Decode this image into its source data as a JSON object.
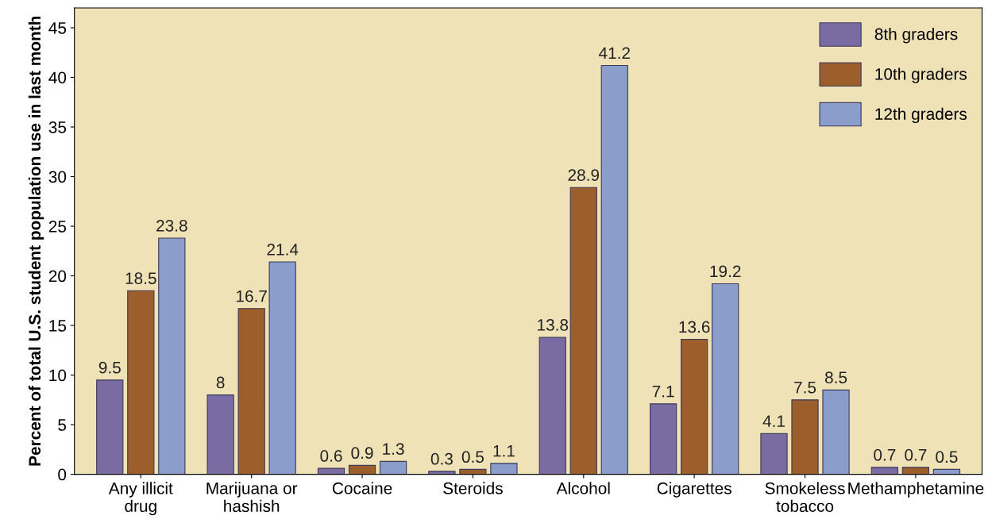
{
  "chart_data": {
    "type": "bar",
    "ylabel": "Percent of total U.S. student population use in last month",
    "categories": [
      "Any illicit\ndrug",
      "Marijuana or\nhashish",
      "Cocaine",
      "Steroids",
      "Alcohol",
      "Cigarettes",
      "Smokeless\ntobacco",
      "Methamphetamine"
    ],
    "series": [
      {
        "name": "8th graders",
        "color": "#7b6ba3",
        "values": [
          9.5,
          8,
          0.6,
          0.3,
          13.8,
          7.1,
          4.1,
          0.7
        ]
      },
      {
        "name": "10th graders",
        "color": "#9c5f2c",
        "values": [
          18.5,
          16.7,
          0.9,
          0.5,
          28.9,
          13.6,
          7.5,
          0.7
        ]
      },
      {
        "name": "12th graders",
        "color": "#8a9dcb",
        "values": [
          23.8,
          21.4,
          1.3,
          1.1,
          41.2,
          19.2,
          8.5,
          0.5
        ]
      }
    ],
    "ylim": [
      0,
      47
    ],
    "yticks": [
      0,
      5,
      10,
      15,
      20,
      25,
      30,
      35,
      40,
      45
    ],
    "data_labels": true,
    "grid": false,
    "legend": "top right"
  }
}
